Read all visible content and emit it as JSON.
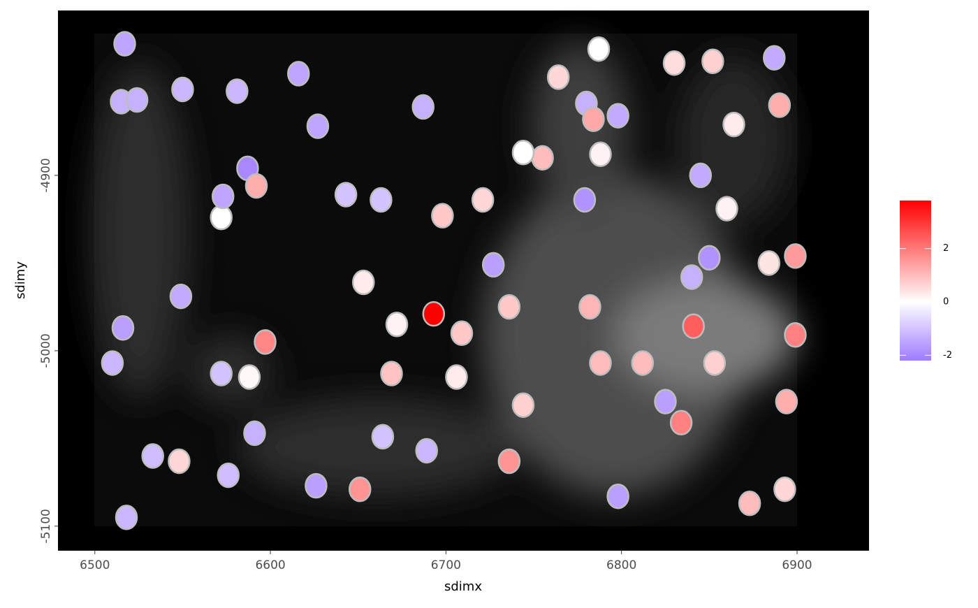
{
  "chart_data": {
    "type": "scatter",
    "x_label": "sdimx",
    "y_label": "sdimy",
    "xlim": [
      6479,
      6941
    ],
    "ylim": [
      -5114,
      -4806
    ],
    "xticks": [
      6500,
      6600,
      6700,
      6800,
      6900
    ],
    "yticks": [
      -5100,
      -5000,
      -4900
    ],
    "grid": false,
    "legend": "right",
    "x": [
      6517,
      6550,
      6581,
      6515,
      6524,
      6627,
      6687,
      6616,
      6587,
      6592,
      6572,
      6573,
      6643,
      6663,
      6698,
      6721,
      6653,
      6672,
      6693,
      6709,
      6706,
      6669,
      6588,
      6572,
      6549,
      6516,
      6510,
      6597,
      6591,
      6548,
      6533,
      6576,
      6626,
      6651,
      6664,
      6689,
      6518,
      6727,
      6736,
      6744,
      6736,
      6755,
      6744,
      6764,
      6787,
      6830,
      6852,
      6887,
      6890,
      6864,
      6860,
      6845,
      6884,
      6840,
      6853,
      6825,
      6834,
      6893,
      6873,
      6798,
      6788,
      6780,
      6784,
      6798,
      6782,
      6788,
      6812,
      6899,
      6894,
      6841,
      6779,
      6850,
      6899
    ],
    "y": [
      -4825,
      -4851,
      -4852,
      -4858,
      -4857,
      -4872,
      -4861,
      -4842,
      -4896,
      -4906,
      -4924,
      -4912,
      -4911,
      -4914,
      -4923,
      -4914,
      -4961,
      -4985,
      -4979,
      -4990,
      -5015,
      -5013,
      -5015,
      -5013,
      -4969,
      -4987,
      -5007,
      -4995,
      -5047,
      -5063,
      -5060,
      -5071,
      -5077,
      -5079,
      -5049,
      -5057,
      -5095,
      -4951,
      -4975,
      -5031,
      -5063,
      -4890,
      -4887,
      -4844,
      -4828,
      -4836,
      -4835,
      -4833,
      -4860,
      -4871,
      -4919,
      -4900,
      -4950,
      -4958,
      -5007,
      -5029,
      -5041,
      -5079,
      -5087,
      -5083,
      -4888,
      -4859,
      -4868,
      -4866,
      -4975,
      -5007,
      -5007,
      -4991,
      -5029,
      -4986,
      -4914,
      -4947,
      -4946
    ],
    "values": [
      -1.5,
      -1.2,
      -1.2,
      -1.3,
      -1.3,
      -1.5,
      -1.3,
      -1.5,
      -2.0,
      1.2,
      0,
      -1.5,
      -1.0,
      -1.0,
      0.8,
      0.6,
      0.3,
      0.2,
      3.8,
      0.8,
      0.3,
      0.9,
      0.1,
      -1.0,
      -1.4,
      -1.6,
      -1.2,
      1.8,
      -1.3,
      0.6,
      -1.1,
      -1.1,
      -1.6,
      1.6,
      -1.0,
      -1.2,
      -1.2,
      -1.6,
      0.8,
      0.7,
      1.6,
      1.0,
      0,
      0.6,
      0,
      0.5,
      0.7,
      -1.4,
      1.2,
      0.3,
      0.2,
      -1.4,
      0.4,
      -1.3,
      0.7,
      -1.6,
      1.9,
      0.6,
      1.0,
      -1.6,
      0.2,
      -1.3,
      1.3,
      -1.4,
      1.1,
      1.0,
      1.0,
      1.9,
      1.2,
      2.4,
      -1.8,
      -1.8,
      1.5
    ],
    "color_scale": {
      "low": "#9f7bff",
      "mid": "#ffffff",
      "high": "#ff0000",
      "lim": [
        -2.2,
        3.8
      ],
      "ticks": [
        -2,
        0,
        2
      ]
    }
  }
}
